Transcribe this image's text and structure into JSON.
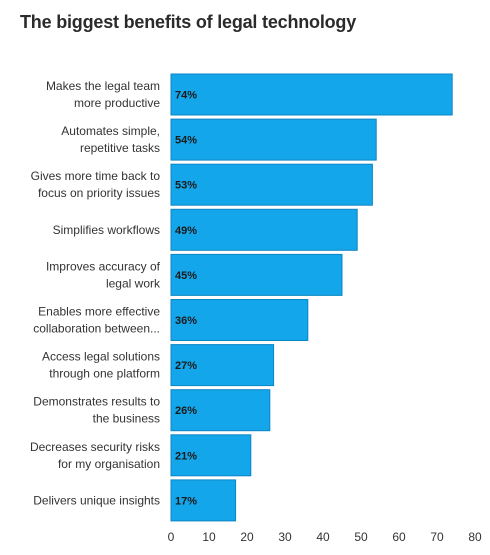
{
  "chart_data": {
    "type": "bar",
    "orientation": "horizontal",
    "title": "The biggest benefits of legal technology",
    "categories": [
      [
        "Makes the legal team",
        "more productive"
      ],
      [
        "Automates simple,",
        "repetitive tasks"
      ],
      [
        "Gives more time back to",
        "focus on priority issues"
      ],
      [
        "Simplifies workflows"
      ],
      [
        "Improves accuracy of",
        "legal work"
      ],
      [
        "Enables more effective",
        "collaboration between..."
      ],
      [
        "Access legal solutions",
        "through one platform"
      ],
      [
        "Demonstrates results to",
        "the business"
      ],
      [
        "Decreases security risks",
        "for my organisation"
      ],
      [
        "Delivers unique insights"
      ]
    ],
    "values": [
      74,
      54,
      53,
      49,
      45,
      36,
      27,
      26,
      21,
      17
    ],
    "data_labels": [
      "74%",
      "54%",
      "53%",
      "49%",
      "45%",
      "36%",
      "27%",
      "26%",
      "21%",
      "17%"
    ],
    "xlim": [
      0,
      80
    ],
    "xticks": [
      0,
      10,
      20,
      30,
      40,
      50,
      60,
      70,
      80
    ],
    "grid": false,
    "legend": "none",
    "bar_color": "#14a6ea",
    "bar_edge_color": "#0d86c4",
    "xlabel": "",
    "ylabel": ""
  }
}
